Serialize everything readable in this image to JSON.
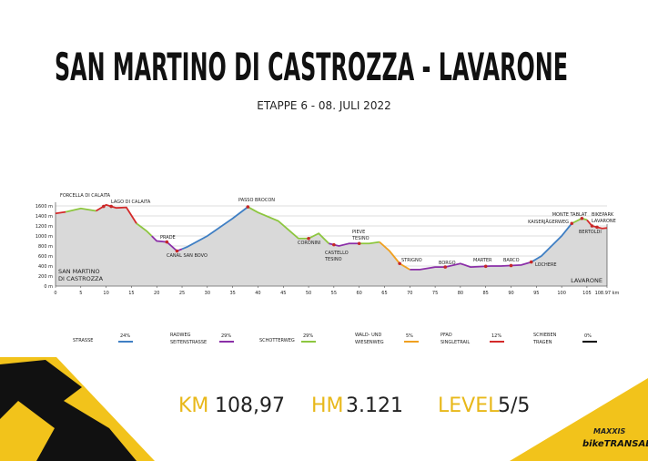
{
  "chart_data": {
    "type": "area",
    "title": "SAN MARTINO DI CASTROZZA - LAVARONE",
    "subtitle": "ETAPPE 6 - 08. JULI 2022",
    "start_label": [
      "SAN MARTINO",
      "DI CASTROZZA"
    ],
    "end_label": "LAVARONE",
    "x": [
      0,
      2,
      5,
      8,
      10,
      12,
      14,
      16,
      18,
      20,
      22,
      24,
      26,
      30,
      35,
      38,
      40,
      44,
      48,
      50,
      52,
      54,
      56,
      58,
      62,
      64,
      66,
      68,
      70,
      72,
      75,
      77,
      80,
      82,
      86,
      88,
      92,
      94,
      96,
      98,
      100,
      102,
      104,
      105,
      106,
      108,
      108.97
    ],
    "values": [
      1450,
      1480,
      1550,
      1500,
      1620,
      1560,
      1570,
      1250,
      1100,
      900,
      880,
      700,
      780,
      1000,
      1350,
      1580,
      1470,
      1300,
      950,
      950,
      1050,
      850,
      800,
      850,
      850,
      880,
      700,
      450,
      330,
      330,
      380,
      380,
      450,
      380,
      400,
      400,
      420,
      480,
      600,
      800,
      1000,
      1250,
      1350,
      1320,
      1200,
      1150,
      1160
    ],
    "color": "#d9d9d9",
    "xlim": [
      0,
      108.97
    ],
    "xticks": [
      0,
      5,
      10,
      15,
      20,
      25,
      30,
      35,
      40,
      45,
      50,
      55,
      60,
      65,
      70,
      75,
      80,
      85,
      90,
      95,
      100,
      105,
      {
        "value": 108.97,
        "label": "108.97 km"
      }
    ],
    "ylim": [
      0,
      1600
    ],
    "yticks": [
      {
        "value": 0,
        "label": "0 m"
      },
      {
        "value": 200,
        "label": "200 m"
      },
      {
        "value": 400,
        "label": "400 m"
      },
      {
        "value": 600,
        "label": "600 m"
      },
      {
        "value": 800,
        "label": "800 m"
      },
      {
        "value": 1000,
        "label": "1000 m"
      },
      {
        "value": 1200,
        "label": "1200 m"
      },
      {
        "value": 1400,
        "label": "1400 m"
      },
      {
        "value": 1600,
        "label": "1600 m"
      }
    ],
    "grid": true,
    "series": [
      {
        "name": [
          "STRASSE"
        ],
        "color": "#3f7fc4",
        "share": 24,
        "share_label": "24%",
        "ranges": [
          [
            25,
            38
          ],
          [
            94,
            102
          ]
        ]
      },
      {
        "name": [
          "RADWEG",
          "SEITENSTRASSE"
        ],
        "color": "#8b2fa8",
        "share": 29,
        "share_label": "29%",
        "ranges": [
          [
            19,
            25
          ],
          [
            54,
            60
          ],
          [
            70,
            94
          ]
        ]
      },
      {
        "name": [
          "SCHOTTERWEG"
        ],
        "color": "#8dc63f",
        "share": 29,
        "share_label": "29%",
        "ranges": [
          [
            2,
            8
          ],
          [
            16,
            19
          ],
          [
            38,
            54
          ],
          [
            60,
            64
          ],
          [
            102,
            105
          ]
        ]
      },
      {
        "name": [
          "WALD- UND",
          "WIESENWEG"
        ],
        "color": "#f0a020",
        "share": 5,
        "share_label": "5%",
        "ranges": [
          [
            64,
            70
          ]
        ]
      },
      {
        "name": [
          "PFAD",
          "SINGLETRAIL"
        ],
        "color": "#d42a2a",
        "share": 12,
        "share_label": "12%",
        "ranges": [
          [
            0,
            2
          ],
          [
            8,
            16
          ],
          [
            105,
            108.97
          ]
        ]
      },
      {
        "name": [
          "SCHIEBEN",
          "TRAGEN"
        ],
        "color": "#000000",
        "share": 0,
        "share_label": "0%",
        "ranges": []
      }
    ],
    "waypoints": [
      {
        "label": [
          "FORCELLA DI CALAITA"
        ],
        "km": 9.5
      },
      {
        "label": [
          "LAGO DI CALAITA"
        ],
        "km": 11
      },
      {
        "label": [
          "PRADE"
        ],
        "km": 22
      },
      {
        "label": [
          "CANAL SAN BOVO"
        ],
        "km": 24
      },
      {
        "label": [
          "PASSO BROCON"
        ],
        "km": 38
      },
      {
        "label": [
          "CORONINI"
        ],
        "km": 50
      },
      {
        "label": [
          "CASTELLO",
          "TESINO"
        ],
        "km": 55
      },
      {
        "label": [
          "PIEVE",
          "TESINO"
        ],
        "km": 60
      },
      {
        "label": [
          "STRIGNO"
        ],
        "km": 68
      },
      {
        "label": [
          "BORGO"
        ],
        "km": 77
      },
      {
        "label": [
          "MARTER"
        ],
        "km": 85
      },
      {
        "label": [
          "BARCO"
        ],
        "km": 90
      },
      {
        "label": [
          "LOCHERE"
        ],
        "km": 94
      },
      {
        "label": [
          "KAISERJÄGERWEG"
        ],
        "km": 102
      },
      {
        "label": [
          "MONTE TABLAT"
        ],
        "km": 104
      },
      {
        "label": [
          "BIKEPARK",
          "LAVARONE"
        ],
        "km": 106
      },
      {
        "label": [
          "BERTOLDI"
        ],
        "km": 107
      }
    ]
  },
  "stats": {
    "km_label": "KM",
    "km": "108,97",
    "hm_label": "HM",
    "hm": "3.121",
    "level_label": "LEVEL",
    "level": "5/5"
  },
  "logo": {
    "brand": "MAXXIS",
    "name": "bikeTRANSALP"
  }
}
